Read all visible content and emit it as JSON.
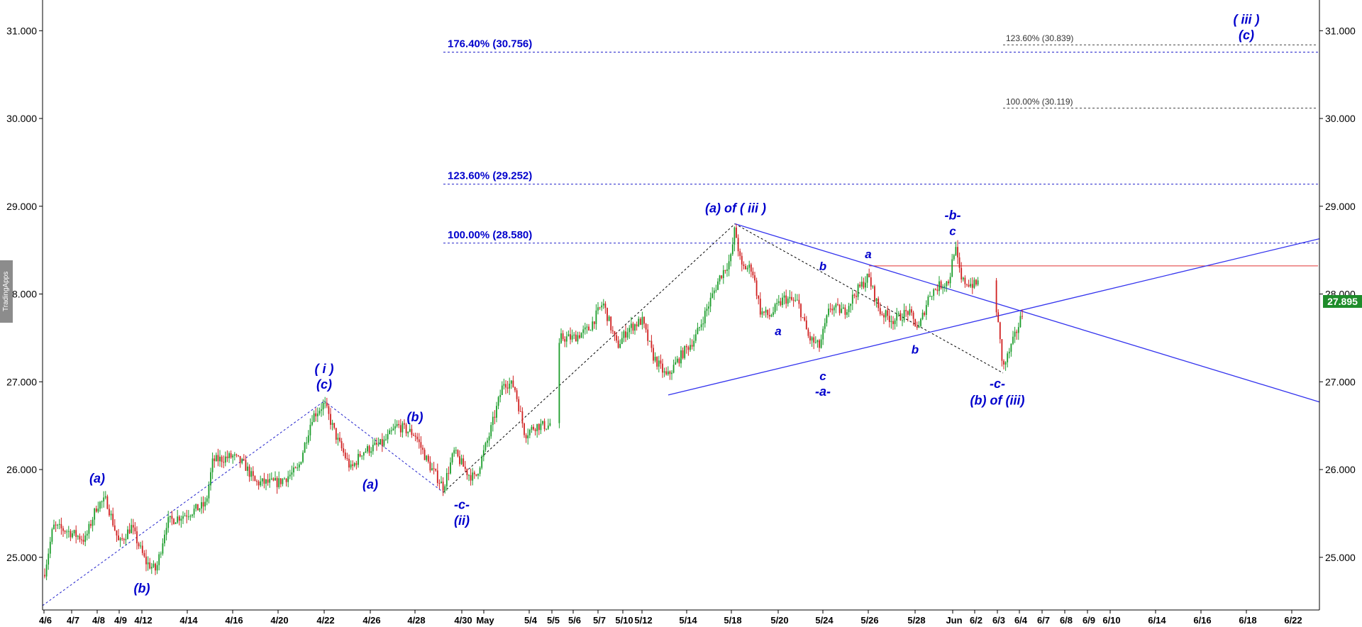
{
  "chart_data": {
    "type": "candlestick",
    "y_axis": {
      "ticks": [
        "25.000",
        "26.000",
        "27.000",
        "28.000",
        "29.000",
        "30.000",
        "31.000"
      ],
      "tick_values": [
        25,
        26,
        27,
        28,
        29,
        30,
        31
      ],
      "range": [
        24.4,
        31.35
      ]
    },
    "x_axis": {
      "ticks": [
        "4/6",
        "4/7",
        "4/8",
        "4/9",
        "4/12",
        "4/14",
        "4/16",
        "4/20",
        "4/22",
        "4/26",
        "4/28",
        "4/30",
        "May",
        "5/4",
        "5/5",
        "5/6",
        "5/7",
        "5/10",
        "5/12",
        "5/14",
        "5/18",
        "5/20",
        "5/24",
        "5/26",
        "5/28",
        "Jun",
        "6/2",
        "6/3",
        "6/4",
        "6/7",
        "6/8",
        "6/9",
        "6/10",
        "6/14",
        "6/16",
        "6/18",
        "6/22"
      ]
    },
    "last_price": "27.895",
    "fib_levels": [
      {
        "label": "176.40% (30.756)",
        "value": 30.756,
        "style": "major"
      },
      {
        "label": "123.60% (29.252)",
        "value": 29.252,
        "style": "major"
      },
      {
        "label": "100.00% (28.580)",
        "value": 28.58,
        "style": "major"
      },
      {
        "label": "123.60% (30.839)",
        "value": 30.839,
        "style": "minor"
      },
      {
        "label": "100.00% (30.119)",
        "value": 30.119,
        "style": "minor"
      }
    ],
    "horizontal_line": {
      "value": 28.32,
      "color": "#e03030"
    },
    "wave_labels": [
      {
        "text": "(a)",
        "x": "4/8",
        "y": 25.85
      },
      {
        "text": "(b)",
        "x": "4/12",
        "y": 24.6
      },
      {
        "text": "( i )",
        "x": "4/22",
        "y": 27.1
      },
      {
        "text": "(c)",
        "x": "4/22",
        "y": 26.92
      },
      {
        "text": "(a)",
        "x": "4/26",
        "y": 25.78
      },
      {
        "text": "(b)",
        "x": "4/28",
        "y": 26.55
      },
      {
        "text": "-c-",
        "x": "4/30",
        "y": 25.55
      },
      {
        "text": "(ii)",
        "x": "4/30",
        "y": 25.37
      },
      {
        "text": "(a) of ( iii )",
        "x": "5/18",
        "y": 28.93
      },
      {
        "text": "a",
        "x": "5/20",
        "y": 27.53
      },
      {
        "text": "b",
        "x": "5/24",
        "y": 28.27
      },
      {
        "text": "c",
        "x": "5/24",
        "y": 27.02
      },
      {
        "text": "-a-",
        "x": "5/24",
        "y": 26.84
      },
      {
        "text": "a",
        "x": "5/26",
        "y": 28.41
      },
      {
        "text": "b",
        "x": "5/28",
        "y": 27.32
      },
      {
        "text": "-b-",
        "x": "Jun",
        "y": 28.85
      },
      {
        "text": "c",
        "x": "Jun",
        "y": 28.67
      },
      {
        "text": "-c-",
        "x": "6/3",
        "y": 26.93
      },
      {
        "text": "(b) of (iii)",
        "x": "6/3",
        "y": 26.74
      },
      {
        "text": "( iii )",
        "x": "6/18",
        "y": 31.08
      },
      {
        "text": "(c)",
        "x": "6/18",
        "y": 30.9
      }
    ],
    "series": [
      {
        "name": "",
        "type": "ohlc",
        "values": []
      }
    ]
  },
  "watermark": "TradingApps",
  "colors": {
    "up": "#1a9c2a",
    "down": "#d02020",
    "wave": "#0000cc",
    "trend": "#3333ee"
  }
}
